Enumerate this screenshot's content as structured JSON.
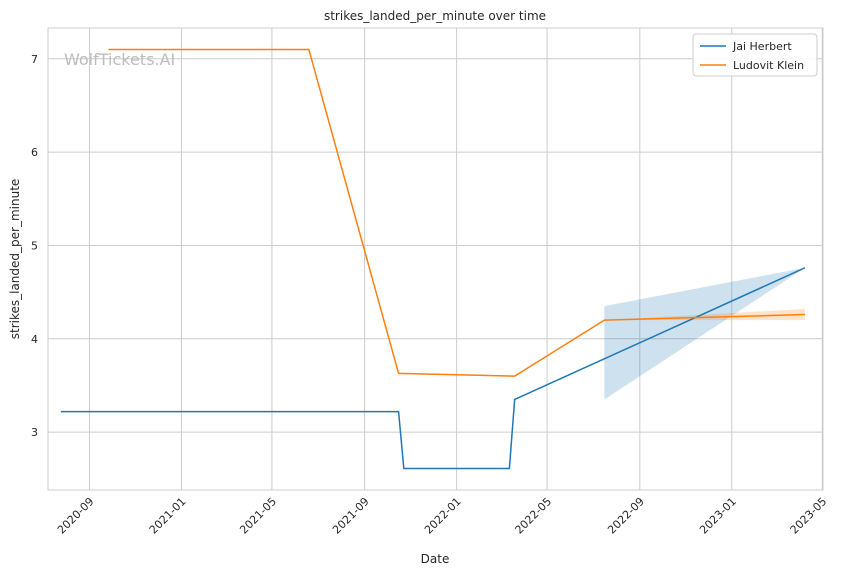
{
  "chart_data": {
    "type": "line",
    "title": "strikes_landed_per_minute over time",
    "xlabel": "Date",
    "ylabel": "strikes_landed_per_minute",
    "watermark": "WolfTickets.AI",
    "x_ticks": [
      "2020-09",
      "2021-01",
      "2021-05",
      "2021-09",
      "2022-01",
      "2022-05",
      "2022-09",
      "2023-01",
      "2023-05"
    ],
    "y_ticks": [
      "3",
      "4",
      "5",
      "6",
      "7"
    ],
    "xlim": [
      "2020-07-08",
      "2023-05-02"
    ],
    "ylim": [
      2.38,
      7.33
    ],
    "grid": true,
    "legend_position": "top-right",
    "series": [
      {
        "name": "Jai Herbert",
        "color": "#1f77b4",
        "points": [
          {
            "x": "2020-07-25",
            "y": 3.22
          },
          {
            "x": "2021-10-16",
            "y": 3.22
          },
          {
            "x": "2021-10-23",
            "y": 2.61
          },
          {
            "x": "2022-03-12",
            "y": 2.61
          },
          {
            "x": "2022-03-19",
            "y": 3.35
          },
          {
            "x": "2023-04-08",
            "y": 4.76
          }
        ],
        "band": [
          {
            "x": "2022-07-16",
            "low": 3.35,
            "high": 4.35
          },
          {
            "x": "2023-04-08",
            "low": 4.76,
            "high": 4.76
          }
        ]
      },
      {
        "name": "Ludovit Klein",
        "color": "#ff7f0e",
        "points": [
          {
            "x": "2020-09-26",
            "y": 7.1
          },
          {
            "x": "2021-06-19",
            "y": 7.1
          },
          {
            "x": "2021-10-16",
            "y": 3.63
          },
          {
            "x": "2022-03-19",
            "y": 3.6
          },
          {
            "x": "2022-07-16",
            "y": 4.2
          },
          {
            "x": "2023-04-08",
            "y": 4.26
          }
        ],
        "band": [
          {
            "x": "2022-07-16",
            "low": 4.2,
            "high": 4.2
          },
          {
            "x": "2023-04-08",
            "low": 4.2,
            "high": 4.32
          }
        ]
      }
    ]
  }
}
